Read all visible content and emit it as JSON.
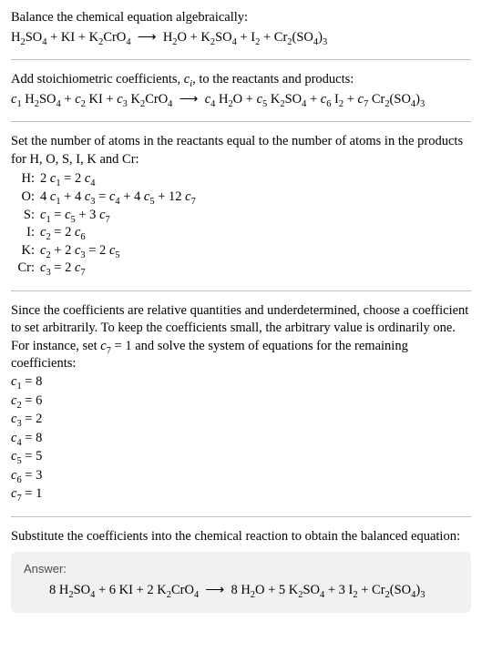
{
  "intro": {
    "line1": "Balance the chemical equation algebraically:",
    "eq_html": "H<sub>2</sub>SO<sub>4</sub> + KI + K<sub>2</sub>CrO<sub>4</sub>&nbsp; ⟶ &nbsp;H<sub>2</sub>O + K<sub>2</sub>SO<sub>4</sub> + I<sub>2</sub> + Cr<sub>2</sub>(SO<sub>4</sub>)<sub>3</sub>"
  },
  "stoich": {
    "line1_html": "Add stoichiometric coefficients, <span class=\"ital\">c<sub>i</sub></span>, to the reactants and products:",
    "eq_html": "<span class=\"ital\">c</span><sub>1</sub> H<sub>2</sub>SO<sub>4</sub> + <span class=\"ital\">c</span><sub>2</sub> KI + <span class=\"ital\">c</span><sub>3</sub> K<sub>2</sub>CrO<sub>4</sub>&nbsp; ⟶ &nbsp;<span class=\"ital\">c</span><sub>4</sub> H<sub>2</sub>O + <span class=\"ital\">c</span><sub>5</sub> K<sub>2</sub>SO<sub>4</sub> + <span class=\"ital\">c</span><sub>6</sub> I<sub>2</sub> + <span class=\"ital\">c</span><sub>7</sub> Cr<sub>2</sub>(SO<sub>4</sub>)<sub>3</sub>"
  },
  "atoms": {
    "intro": "Set the number of atoms in the reactants equal to the number of atoms in the products for H, O, S, I, K and Cr:",
    "rows": [
      {
        "label": "H:",
        "eq_html": "2 <span class=\"ital\">c</span><sub>1</sub> = 2 <span class=\"ital\">c</span><sub>4</sub>"
      },
      {
        "label": "O:",
        "eq_html": "4 <span class=\"ital\">c</span><sub>1</sub> + 4 <span class=\"ital\">c</span><sub>3</sub> = <span class=\"ital\">c</span><sub>4</sub> + 4 <span class=\"ital\">c</span><sub>5</sub> + 12 <span class=\"ital\">c</span><sub>7</sub>"
      },
      {
        "label": "S:",
        "eq_html": "<span class=\"ital\">c</span><sub>1</sub> = <span class=\"ital\">c</span><sub>5</sub> + 3 <span class=\"ital\">c</span><sub>7</sub>"
      },
      {
        "label": "I:",
        "eq_html": "<span class=\"ital\">c</span><sub>2</sub> = 2 <span class=\"ital\">c</span><sub>6</sub>"
      },
      {
        "label": "K:",
        "eq_html": "<span class=\"ital\">c</span><sub>2</sub> + 2 <span class=\"ital\">c</span><sub>3</sub> = 2 <span class=\"ital\">c</span><sub>5</sub>"
      },
      {
        "label": "Cr:",
        "eq_html": "<span class=\"ital\">c</span><sub>3</sub> = 2 <span class=\"ital\">c</span><sub>7</sub>"
      }
    ]
  },
  "underdet": {
    "text_html": "Since the coefficients are relative quantities and underdetermined, choose a coefficient to set arbitrarily. To keep the coefficients small, the arbitrary value is ordinarily one. For instance, set <span class=\"ital\">c</span><sub>7</sub> = 1 and solve the system of equations for the remaining coefficients:",
    "lines_html": [
      "<span class=\"ital\">c</span><sub>1</sub> = 8",
      "<span class=\"ital\">c</span><sub>2</sub> = 6",
      "<span class=\"ital\">c</span><sub>3</sub> = 2",
      "<span class=\"ital\">c</span><sub>4</sub> = 8",
      "<span class=\"ital\">c</span><sub>5</sub> = 5",
      "<span class=\"ital\">c</span><sub>6</sub> = 3",
      "<span class=\"ital\">c</span><sub>7</sub> = 1"
    ]
  },
  "subst": {
    "text": "Substitute the coefficients into the chemical reaction to obtain the balanced equation:"
  },
  "answer": {
    "label": "Answer:",
    "eq_html": "8 H<sub>2</sub>SO<sub>4</sub> + 6 KI + 2 K<sub>2</sub>CrO<sub>4</sub>&nbsp; ⟶ &nbsp;8 H<sub>2</sub>O + 5 K<sub>2</sub>SO<sub>4</sub> + 3 I<sub>2</sub> + Cr<sub>2</sub>(SO<sub>4</sub>)<sub>3</sub>"
  },
  "colors": {
    "text": "#000000",
    "rule": "#bfc0c2",
    "answer_bg": "#f1f1f1",
    "answer_label": "#4a4a4a"
  }
}
